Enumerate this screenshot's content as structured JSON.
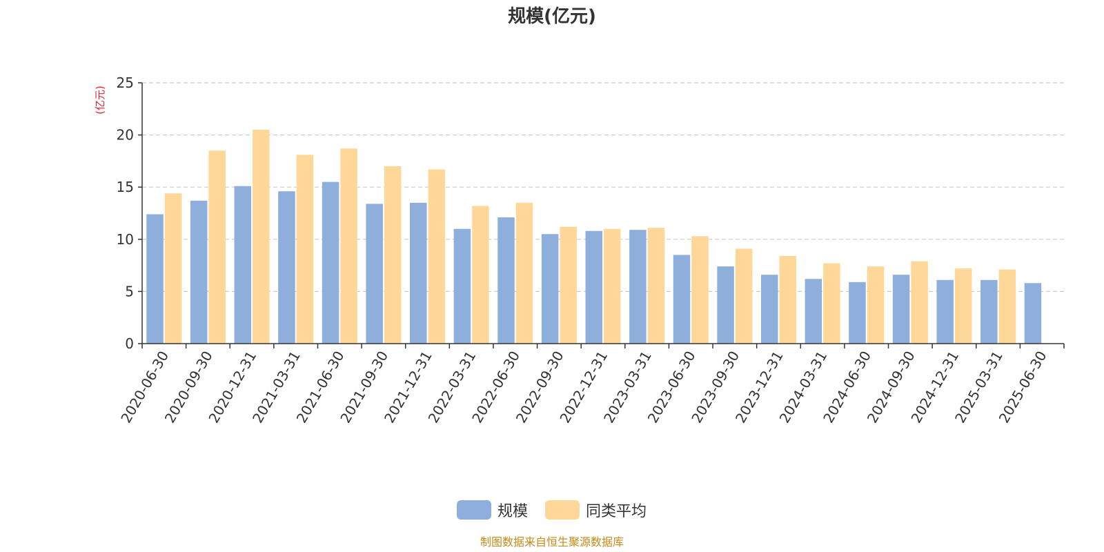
{
  "chart_data": {
    "type": "bar",
    "title": "规模(亿元)",
    "ylabel": "(亿元)",
    "ylim": [
      0,
      25
    ],
    "yticks": [
      0,
      5,
      10,
      15,
      20,
      25
    ],
    "grid": true,
    "legend_position": "bottom",
    "categories": [
      "2020-06-30",
      "2020-09-30",
      "2020-12-31",
      "2021-03-31",
      "2021-06-30",
      "2021-09-30",
      "2021-12-31",
      "2022-03-31",
      "2022-06-30",
      "2022-09-30",
      "2022-12-31",
      "2023-03-31",
      "2023-06-30",
      "2023-09-30",
      "2023-12-31",
      "2024-03-31",
      "2024-06-30",
      "2024-09-30",
      "2024-12-31",
      "2025-03-31",
      "2025-06-30"
    ],
    "series": [
      {
        "name": "规模",
        "color": "#8eaedb",
        "values": [
          12.4,
          13.7,
          15.1,
          14.6,
          15.5,
          13.4,
          13.5,
          11.0,
          12.1,
          10.5,
          10.8,
          10.9,
          8.5,
          7.4,
          6.6,
          6.2,
          5.9,
          6.6,
          6.1,
          6.1,
          5.8
        ]
      },
      {
        "name": "同类平均",
        "color": "#ffd899",
        "values": [
          14.4,
          18.5,
          20.5,
          18.1,
          18.7,
          17.0,
          16.7,
          13.2,
          13.5,
          11.2,
          11.0,
          11.1,
          10.3,
          9.1,
          8.4,
          7.7,
          7.4,
          7.9,
          7.2,
          7.1,
          null
        ]
      }
    ]
  },
  "footer": {
    "source": "制图数据来自恒生聚源数据库"
  },
  "colors": {
    "unit_label": "#e8202a",
    "source_text": "#c48a1a",
    "axis": "#333333",
    "grid": "#cccccc"
  }
}
